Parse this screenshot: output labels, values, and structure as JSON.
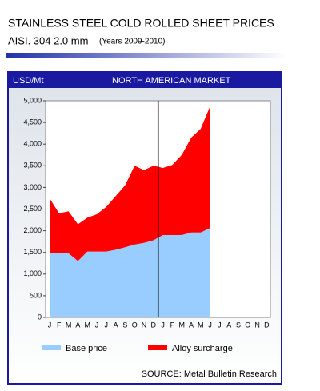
{
  "chart_data": {
    "type": "area",
    "stacked": true,
    "title": "STAINLESS STEEL COLD ROLLED  SHEET PRICES",
    "subtitle": "AISI. 304 2.0 mm",
    "subtitle_note": "(Years 2009-2010)",
    "y_label": "USD/Mt",
    "header": "NORTH AMERICAN MARKET",
    "source": "SOURCE: Metal Bulletin Research",
    "categories": [
      "J",
      "F",
      "M",
      "A",
      "M",
      "J",
      "J",
      "A",
      "S",
      "O",
      "N",
      "D",
      "J",
      "F",
      "M",
      "A",
      "M",
      "J",
      "J",
      "A",
      "S",
      "O",
      "N",
      "D"
    ],
    "series": [
      {
        "name": "Base price",
        "color": "#99ccff",
        "values": [
          1480,
          1480,
          1480,
          1300,
          1520,
          1520,
          1520,
          1560,
          1620,
          1680,
          1720,
          1780,
          1900,
          1900,
          1900,
          1960,
          1960,
          2060,
          null,
          null,
          null,
          null,
          null,
          null
        ]
      },
      {
        "name": "Alloy surcharge",
        "color": "#ff0000",
        "values": [
          1270,
          920,
          970,
          850,
          780,
          860,
          1030,
          1240,
          1430,
          1820,
          1680,
          1720,
          1550,
          1620,
          1850,
          2190,
          2390,
          2810,
          null,
          null,
          null,
          null,
          null,
          null
        ]
      }
    ],
    "ylim": [
      0,
      5000
    ],
    "yticks": [
      0,
      500,
      {
        "value": 1000,
        "label": "1,000"
      },
      {
        "value": 1500,
        "label": "1,500"
      },
      {
        "value": 2000,
        "label": "2,000"
      },
      {
        "value": 2500,
        "label": "2,500"
      },
      {
        "value": 3000,
        "label": "3,000"
      },
      {
        "value": 3500,
        "label": "3,500"
      },
      {
        "value": 4000,
        "label": "4,000"
      },
      {
        "value": 4500,
        "label": "4,500"
      },
      {
        "value": 5000,
        "label": "5,000"
      }
    ],
    "grid": false
  }
}
